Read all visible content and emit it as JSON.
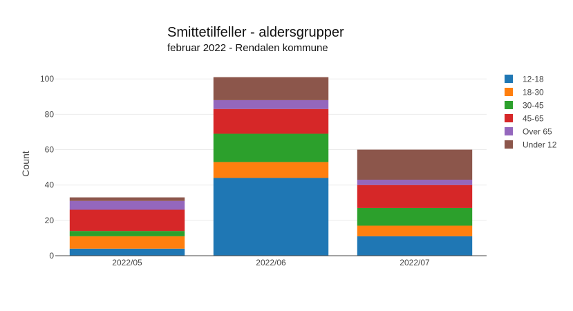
{
  "chart_data": {
    "type": "bar",
    "stacked": true,
    "title": "Smittetilfeller - aldersgrupper",
    "subtitle": "februar 2022 - Rendalen kommune",
    "xlabel": "",
    "ylabel": "Count",
    "ylim": [
      0,
      104
    ],
    "yticks": [
      0,
      20,
      40,
      60,
      80,
      100
    ],
    "grid": true,
    "legend_position": "right",
    "categories": [
      "2022/05",
      "2022/06",
      "2022/07"
    ],
    "series": [
      {
        "name": "12-18",
        "color": "#1f77b4",
        "values": [
          4,
          44,
          11
        ]
      },
      {
        "name": "18-30",
        "color": "#ff7f0e",
        "values": [
          7,
          9,
          6
        ]
      },
      {
        "name": "30-45",
        "color": "#2ca02c",
        "values": [
          3,
          16,
          10
        ]
      },
      {
        "name": "45-65",
        "color": "#d62728",
        "values": [
          12,
          14,
          13
        ]
      },
      {
        "name": "Over 65",
        "color": "#9467bd",
        "values": [
          5,
          5,
          3
        ]
      },
      {
        "name": "Under 12",
        "color": "#8c564b",
        "values": [
          2,
          13,
          17
        ]
      }
    ]
  }
}
